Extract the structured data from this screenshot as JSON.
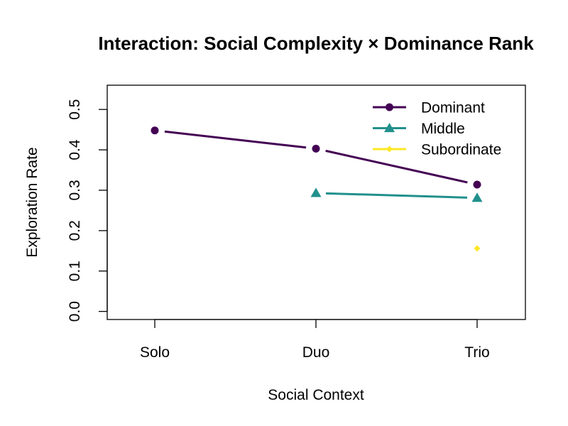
{
  "chart_data": {
    "type": "line",
    "title": "Interaction: Social Complexity × Dominance Rank",
    "xlabel": "Social Context",
    "ylabel": "Exploration Rate",
    "categories": [
      "Solo",
      "Duo",
      "Trio"
    ],
    "ylim": [
      -0.02,
      0.56
    ],
    "yticks": [
      "0.0",
      "0.1",
      "0.2",
      "0.3",
      "0.4",
      "0.5"
    ],
    "grid": false,
    "legend_position": "top-right",
    "series": [
      {
        "name": "Dominant",
        "color": "#440154",
        "marker": "circle",
        "values": [
          0.448,
          0.403,
          0.314
        ]
      },
      {
        "name": "Middle",
        "color": "#21908C",
        "marker": "triangle",
        "values": [
          null,
          0.293,
          0.281
        ]
      },
      {
        "name": "Subordinate",
        "color": "#FDE725",
        "marker": "diamond",
        "values": [
          null,
          null,
          0.156
        ]
      }
    ]
  }
}
